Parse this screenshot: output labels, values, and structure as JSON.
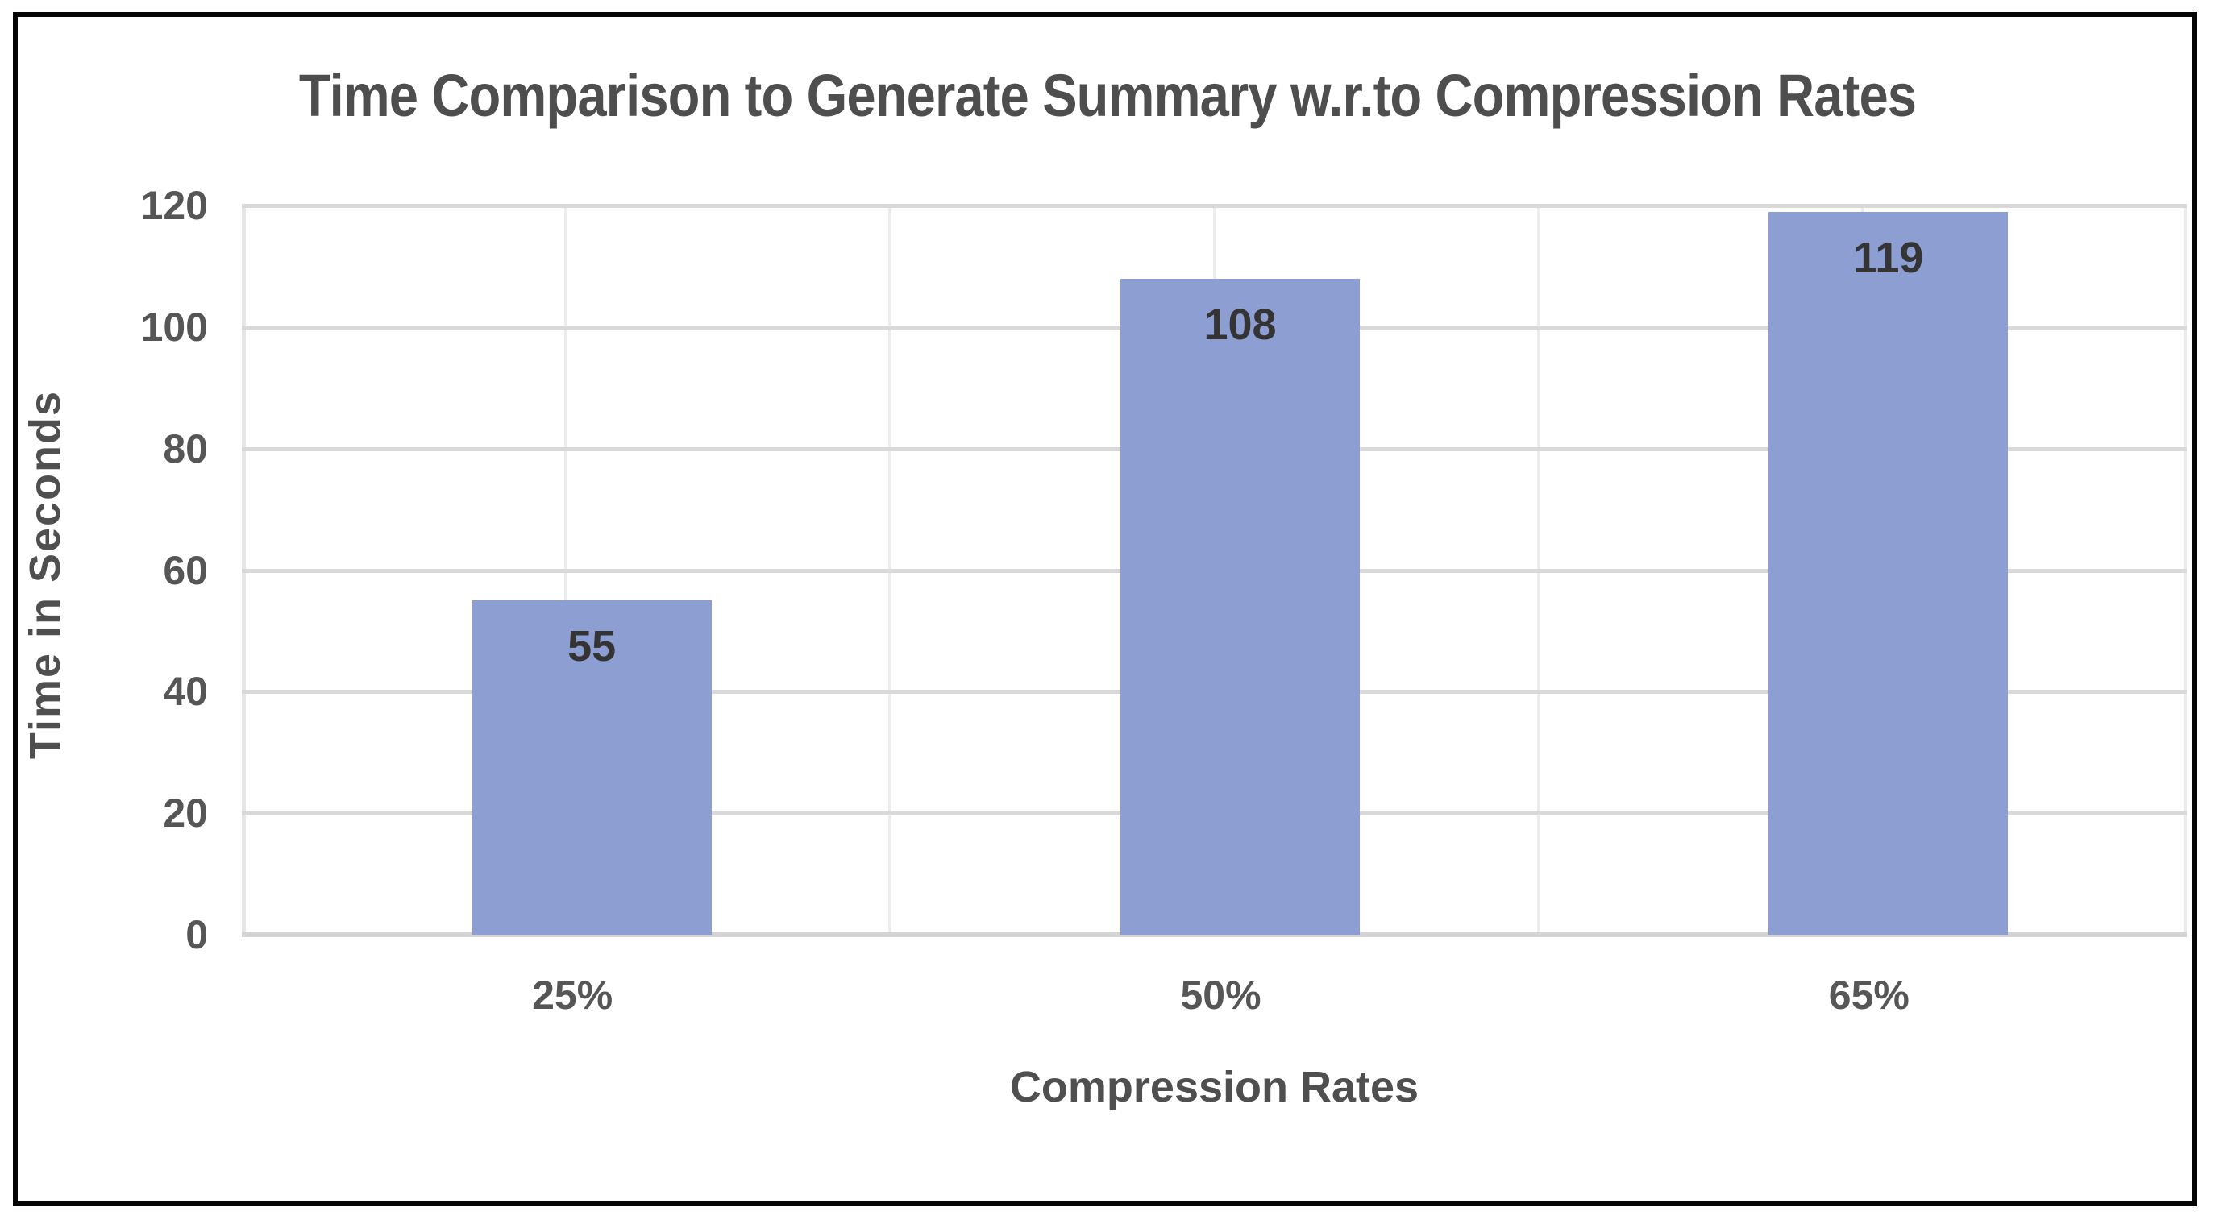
{
  "chart_data": {
    "type": "bar",
    "title": "Time Comparison to Generate Summary w.r.to Compression Rates",
    "categories": [
      "25%",
      "50%",
      "65%"
    ],
    "values": [
      55,
      108,
      119
    ],
    "data_labels": [
      "55",
      "108",
      "119"
    ],
    "xlabel": "Compression Rates",
    "ylabel": "Time in Seconds",
    "ylim": [
      0,
      120
    ],
    "yticks": [
      0,
      20,
      40,
      60,
      80,
      100,
      120
    ],
    "grid": "horizontal-major and vertical-minor gridlines on, white plot background",
    "legend_position": "none",
    "data_label_position": "inside-end",
    "bar_color": "#8d9ed3",
    "gridline_color": "#d9d9d9",
    "text_color": "#4f4f4f",
    "border_color": "#050505"
  }
}
